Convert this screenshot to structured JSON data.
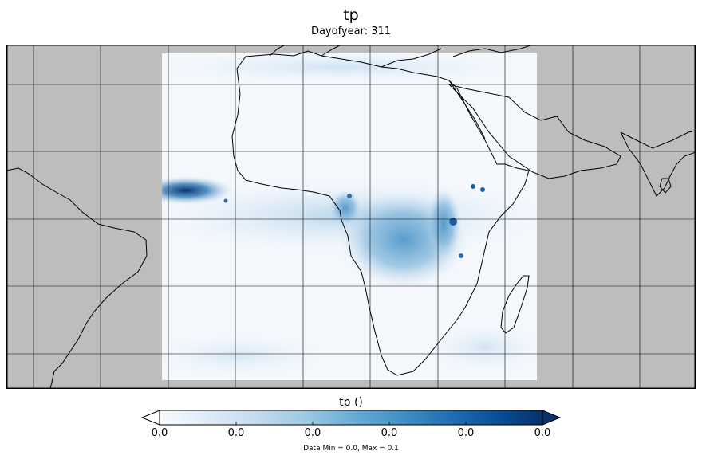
{
  "title": "tp",
  "subtitle": "Dayofyear: 311",
  "colorbar": {
    "label": "tp ()",
    "ticks": [
      "0.0",
      "0.0",
      "0.0",
      "0.0",
      "0.0",
      "0.0"
    ],
    "colors": [
      "#f7fbff",
      "#deebf7",
      "#c6dbef",
      "#9ecae1",
      "#6baed6",
      "#4292c6",
      "#2171b5",
      "#08519c",
      "#08306b"
    ]
  },
  "footnote": "Data Min = 0.0, Max = 0.1",
  "map": {
    "land_color": "#bdbdbd",
    "ocean_color": "#ffffff",
    "coastline_color": "#000000",
    "gridline_color": "#000000"
  }
}
